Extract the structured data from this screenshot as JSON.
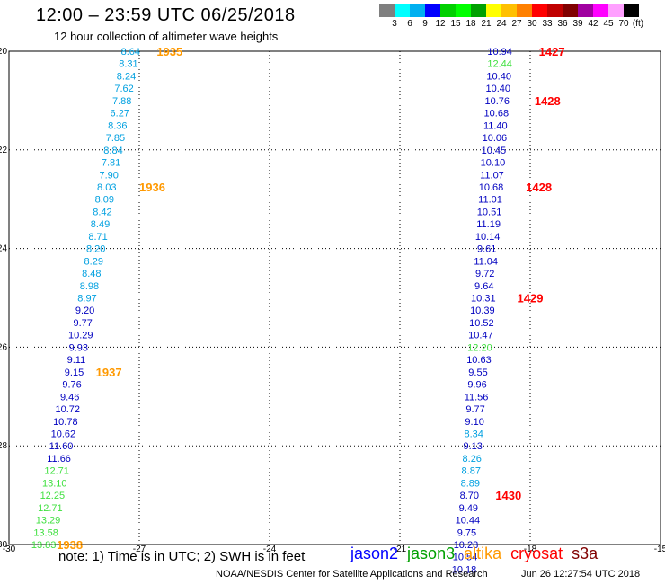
{
  "header": {
    "title": "12:00 – 23:59 UTC 06/25/2018",
    "subtitle": "12 hour collection of altimeter wave heights"
  },
  "colorbar": {
    "unit_label": "(ft)",
    "ticks": [
      "3",
      "6",
      "9",
      "12",
      "15",
      "18",
      "21",
      "24",
      "27",
      "30",
      "33",
      "36",
      "39",
      "42",
      "45",
      "70"
    ],
    "colors": [
      "#7f7f7f",
      "#00ffff",
      "#00b0f0",
      "#0000ff",
      "#00d000",
      "#00ff00",
      "#00a000",
      "#ffff00",
      "#ffc000",
      "#ff8000",
      "#ff0000",
      "#c00000",
      "#800000",
      "#a000a0",
      "#ff00ff",
      "#ffa0ff",
      "#000000"
    ]
  },
  "note": "note:  1) Time is in UTC;  2) SWH is in feet",
  "legend": [
    {
      "label": "jason2",
      "color": "#0000ff"
    },
    {
      "label": "jason3",
      "color": "#00a000"
    },
    {
      "label": "altika",
      "color": "#ff9900"
    },
    {
      "label": "cryosat",
      "color": "#ff0000"
    },
    {
      "label": "s3a",
      "color": "#800000"
    }
  ],
  "footer": {
    "credit": "NOAA/NESDIS Center for Satellite Applications and Research",
    "generated": "Jun 26 12:27:54 UTC 2018"
  },
  "chart_data": {
    "type": "scatter",
    "title": "12:00 – 23:59 UTC 06/25/2018",
    "subtitle": "12 hour collection of altimeter wave heights",
    "xlim": [
      -30,
      -15
    ],
    "ylim": [
      -30,
      -20
    ],
    "xticks": [
      -30,
      -27,
      -24,
      -21,
      -18,
      -15
    ],
    "yticks": [
      -20,
      -22,
      -24,
      -26,
      -28,
      -30
    ],
    "grid": true,
    "tracks": [
      {
        "name": "altika",
        "color": "#00a0e0",
        "points": [
          {
            "x": -27.2,
            "y": -20.0,
            "v": "8.64"
          },
          {
            "x": -27.25,
            "y": -20.25,
            "v": "8.31"
          },
          {
            "x": -27.3,
            "y": -20.5,
            "v": "8.24"
          },
          {
            "x": -27.35,
            "y": -20.75,
            "v": "7.62"
          },
          {
            "x": -27.4,
            "y": -21.0,
            "v": "7.88"
          },
          {
            "x": -27.45,
            "y": -21.25,
            "v": "6.27"
          },
          {
            "x": -27.5,
            "y": -21.5,
            "v": "8.36"
          },
          {
            "x": -27.55,
            "y": -21.75,
            "v": "7.85"
          },
          {
            "x": -27.6,
            "y": -22.0,
            "v": "8.84"
          },
          {
            "x": -27.65,
            "y": -22.25,
            "v": "7.81"
          },
          {
            "x": -27.7,
            "y": -22.5,
            "v": "7.90"
          },
          {
            "x": -27.75,
            "y": -22.75,
            "v": "8.03"
          },
          {
            "x": -27.8,
            "y": -23.0,
            "v": "8.09"
          },
          {
            "x": -27.85,
            "y": -23.25,
            "v": "8.42"
          },
          {
            "x": -27.9,
            "y": -23.5,
            "v": "8.49"
          },
          {
            "x": -27.95,
            "y": -23.75,
            "v": "8.71"
          },
          {
            "x": -28.0,
            "y": -24.0,
            "v": "8.20"
          },
          {
            "x": -28.05,
            "y": -24.25,
            "v": "8.29"
          },
          {
            "x": -28.1,
            "y": -24.5,
            "v": "8.48"
          },
          {
            "x": -28.15,
            "y": -24.75,
            "v": "8.98"
          },
          {
            "x": -28.2,
            "y": -25.0,
            "v": "8.97"
          },
          {
            "x": -28.25,
            "y": -25.25,
            "v": "9.20"
          },
          {
            "x": -28.3,
            "y": -25.5,
            "v": "9.77"
          },
          {
            "x": -28.35,
            "y": -25.75,
            "v": "10.29"
          },
          {
            "x": -28.4,
            "y": -26.0,
            "v": "9.93"
          },
          {
            "x": -28.45,
            "y": -26.25,
            "v": "9.11"
          },
          {
            "x": -28.5,
            "y": -26.5,
            "v": "9.15"
          },
          {
            "x": -28.55,
            "y": -26.75,
            "v": "9.76"
          },
          {
            "x": -28.6,
            "y": -27.0,
            "v": "9.46"
          },
          {
            "x": -28.65,
            "y": -27.25,
            "v": "10.72"
          },
          {
            "x": -28.7,
            "y": -27.5,
            "v": "10.78"
          },
          {
            "x": -28.75,
            "y": -27.75,
            "v": "10.62"
          },
          {
            "x": -28.8,
            "y": -28.0,
            "v": "11.60"
          },
          {
            "x": -28.85,
            "y": -28.25,
            "v": "11.66"
          },
          {
            "x": -28.9,
            "y": -28.5,
            "v": "12.71"
          },
          {
            "x": -28.95,
            "y": -28.75,
            "v": "13.10"
          },
          {
            "x": -29.0,
            "y": -29.0,
            "v": "12.25"
          },
          {
            "x": -29.05,
            "y": -29.25,
            "v": "12.71"
          },
          {
            "x": -29.1,
            "y": -29.5,
            "v": "13.29"
          },
          {
            "x": -29.15,
            "y": -29.75,
            "v": "13.58"
          },
          {
            "x": -29.2,
            "y": -30.0,
            "v": "13.83"
          }
        ],
        "colors": [
          "#00a0e0",
          "#00a0e0",
          "#00a0e0",
          "#00a0e0",
          "#00a0e0",
          "#00a0e0",
          "#00a0e0",
          "#00a0e0",
          "#00a0e0",
          "#00a0e0",
          "#00a0e0",
          "#00a0e0",
          "#00a0e0",
          "#00a0e0",
          "#00a0e0",
          "#00a0e0",
          "#00a0e0",
          "#00a0e0",
          "#00a0e0",
          "#00a0e0",
          "#00a0e0",
          "#0000c0",
          "#0000c0",
          "#0000c0",
          "#0000c0",
          "#0000c0",
          "#0000c0",
          "#0000c0",
          "#0000c0",
          "#0000c0",
          "#0000c0",
          "#0000c0",
          "#0000c0",
          "#0000c0",
          "#40e040",
          "#40e040",
          "#40e040",
          "#40e040",
          "#40e040",
          "#40e040",
          "#40e040"
        ],
        "time_labels": [
          {
            "x": -26.6,
            "y": -20.0,
            "text": "1935"
          },
          {
            "x": -27.0,
            "y": -22.75,
            "text": "1936"
          },
          {
            "x": -28.0,
            "y": -26.5,
            "text": "1937"
          },
          {
            "x": -28.9,
            "y": -30.0,
            "text": "1938"
          }
        ],
        "time_label_color": "#ff9900"
      },
      {
        "name": "cryosat",
        "color": "#0000c0",
        "points": [
          {
            "x": -18.7,
            "y": -20.0,
            "v": "10.94"
          },
          {
            "x": -18.7,
            "y": -20.25,
            "v": "12.44"
          },
          {
            "x": -18.72,
            "y": -20.5,
            "v": "10.40"
          },
          {
            "x": -18.74,
            "y": -20.75,
            "v": "10.40"
          },
          {
            "x": -18.76,
            "y": -21.0,
            "v": "10.76"
          },
          {
            "x": -18.78,
            "y": -21.25,
            "v": "10.68"
          },
          {
            "x": -18.8,
            "y": -21.5,
            "v": "11.40"
          },
          {
            "x": -18.82,
            "y": -21.75,
            "v": "10.06"
          },
          {
            "x": -18.84,
            "y": -22.0,
            "v": "10.45"
          },
          {
            "x": -18.86,
            "y": -22.25,
            "v": "10.10"
          },
          {
            "x": -18.88,
            "y": -22.5,
            "v": "11.07"
          },
          {
            "x": -18.9,
            "y": -22.75,
            "v": "10.68"
          },
          {
            "x": -18.92,
            "y": -23.0,
            "v": "11.01"
          },
          {
            "x": -18.94,
            "y": -23.25,
            "v": "10.51"
          },
          {
            "x": -18.96,
            "y": -23.5,
            "v": "11.19"
          },
          {
            "x": -18.98,
            "y": -23.75,
            "v": "10.14"
          },
          {
            "x": -19.0,
            "y": -24.0,
            "v": "9.61"
          },
          {
            "x": -19.02,
            "y": -24.25,
            "v": "11.04"
          },
          {
            "x": -19.04,
            "y": -24.5,
            "v": "9.72"
          },
          {
            "x": -19.06,
            "y": -24.75,
            "v": "9.64"
          },
          {
            "x": -19.08,
            "y": -25.0,
            "v": "10.31"
          },
          {
            "x": -19.1,
            "y": -25.25,
            "v": "10.39"
          },
          {
            "x": -19.12,
            "y": -25.5,
            "v": "10.52"
          },
          {
            "x": -19.14,
            "y": -25.75,
            "v": "10.47"
          },
          {
            "x": -19.16,
            "y": -26.0,
            "v": "12.20"
          },
          {
            "x": -19.18,
            "y": -26.25,
            "v": "10.63"
          },
          {
            "x": -19.2,
            "y": -26.5,
            "v": "9.55"
          },
          {
            "x": -19.22,
            "y": -26.75,
            "v": "9.96"
          },
          {
            "x": -19.24,
            "y": -27.0,
            "v": "11.56"
          },
          {
            "x": -19.26,
            "y": -27.25,
            "v": "9.77"
          },
          {
            "x": -19.28,
            "y": -27.5,
            "v": "9.10"
          },
          {
            "x": -19.3,
            "y": -27.75,
            "v": "8.34"
          },
          {
            "x": -19.32,
            "y": -28.0,
            "v": "9.13"
          },
          {
            "x": -19.34,
            "y": -28.25,
            "v": "8.26"
          },
          {
            "x": -19.36,
            "y": -28.5,
            "v": "8.87"
          },
          {
            "x": -19.38,
            "y": -28.75,
            "v": "8.89"
          },
          {
            "x": -19.4,
            "y": -29.0,
            "v": "8.70"
          },
          {
            "x": -19.42,
            "y": -29.25,
            "v": "9.49"
          },
          {
            "x": -19.44,
            "y": -29.5,
            "v": "10.44"
          },
          {
            "x": -19.46,
            "y": -29.75,
            "v": "9.75"
          },
          {
            "x": -19.48,
            "y": -30.0,
            "v": "10.28"
          },
          {
            "x": -19.5,
            "y": -30.25,
            "v": "10.54"
          },
          {
            "x": -19.52,
            "y": -30.5,
            "v": "10.18"
          }
        ],
        "colors": [
          "#0000c0",
          "#40e040",
          "#0000c0",
          "#0000c0",
          "#0000c0",
          "#0000c0",
          "#0000c0",
          "#0000c0",
          "#0000c0",
          "#0000c0",
          "#0000c0",
          "#0000c0",
          "#0000c0",
          "#0000c0",
          "#0000c0",
          "#0000c0",
          "#0000c0",
          "#0000c0",
          "#0000c0",
          "#0000c0",
          "#0000c0",
          "#0000c0",
          "#0000c0",
          "#0000c0",
          "#40e040",
          "#0000c0",
          "#0000c0",
          "#0000c0",
          "#0000c0",
          "#0000c0",
          "#0000c0",
          "#00a0e0",
          "#0000c0",
          "#00a0e0",
          "#00a0e0",
          "#00a0e0",
          "#0000c0",
          "#0000c0",
          "#0000c0",
          "#0000c0",
          "#0000c0",
          "#0000c0",
          "#0000c0"
        ],
        "time_labels": [
          {
            "x": -17.8,
            "y": -20.0,
            "text": "1427"
          },
          {
            "x": -17.9,
            "y": -21.0,
            "text": "1428"
          },
          {
            "x": -18.1,
            "y": -22.75,
            "text": "1428"
          },
          {
            "x": -18.3,
            "y": -25.0,
            "text": "1429"
          },
          {
            "x": -18.8,
            "y": -29.0,
            "text": "1430"
          }
        ],
        "time_label_color": "#ff0000"
      }
    ]
  }
}
